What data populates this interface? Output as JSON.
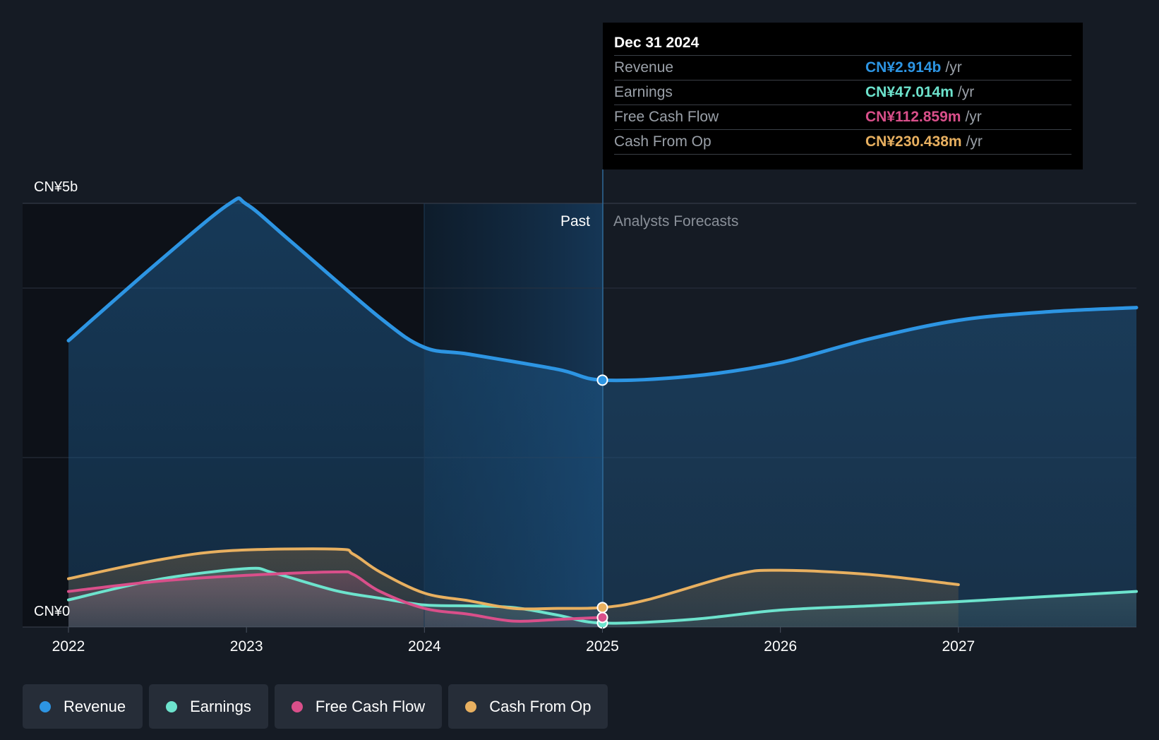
{
  "tooltip": {
    "date": "Dec 31 2024",
    "rows": [
      {
        "label": "Revenue",
        "value": "CN¥2.914b",
        "unit": "/yr",
        "color": "#2d95e3"
      },
      {
        "label": "Earnings",
        "value": "CN¥47.014m",
        "unit": "/yr",
        "color": "#6de3cd"
      },
      {
        "label": "Free Cash Flow",
        "value": "CN¥112.859m",
        "unit": "/yr",
        "color": "#d94f8a"
      },
      {
        "label": "Cash From Op",
        "value": "CN¥230.438m",
        "unit": "/yr",
        "color": "#e8b060"
      }
    ]
  },
  "legend": [
    {
      "label": "Revenue",
      "color": "#2d95e3"
    },
    {
      "label": "Earnings",
      "color": "#6de3cd"
    },
    {
      "label": "Free Cash Flow",
      "color": "#d94f8a"
    },
    {
      "label": "Cash From Op",
      "color": "#e8b060"
    }
  ],
  "chart_data": {
    "type": "line",
    "currency": "CN¥",
    "ylim": [
      0,
      5
    ],
    "y_unit": "billions",
    "xlim": [
      2022,
      2028
    ],
    "y_tick_labels": [
      "CN¥5b",
      "CN¥0"
    ],
    "x_tick_labels": [
      "2022",
      "2023",
      "2024",
      "2025",
      "2026",
      "2027"
    ],
    "x_ticks": [
      2022,
      2023,
      2024,
      2025,
      2026,
      2027
    ],
    "past_label": "Past",
    "forecast_label": "Analysts Forecasts",
    "divider_x": 2025,
    "highlight_start_x": 2024,
    "series": [
      {
        "name": "Revenue",
        "color": "#2d95e3",
        "points": [
          [
            2022,
            3.38
          ],
          [
            2022.5,
            4.3
          ],
          [
            2022.9,
            4.99
          ],
          [
            2023,
            4.99
          ],
          [
            2023.25,
            4.55
          ],
          [
            2023.75,
            3.65
          ],
          [
            2024,
            3.3
          ],
          [
            2024.25,
            3.22
          ],
          [
            2024.75,
            3.04
          ],
          [
            2025,
            2.914
          ],
          [
            2025.5,
            2.96
          ],
          [
            2026,
            3.12
          ],
          [
            2026.5,
            3.4
          ],
          [
            2027,
            3.62
          ],
          [
            2027.5,
            3.72
          ],
          [
            2028,
            3.77
          ]
        ]
      },
      {
        "name": "Earnings",
        "color": "#6de3cd",
        "points": [
          [
            2022,
            0.32
          ],
          [
            2022.5,
            0.56
          ],
          [
            2023,
            0.69
          ],
          [
            2023.15,
            0.64
          ],
          [
            2023.5,
            0.43
          ],
          [
            2023.75,
            0.34
          ],
          [
            2024,
            0.26
          ],
          [
            2024.25,
            0.25
          ],
          [
            2024.5,
            0.23
          ],
          [
            2024.75,
            0.14
          ],
          [
            2025,
            0.047
          ],
          [
            2025.5,
            0.09
          ],
          [
            2026,
            0.2
          ],
          [
            2026.5,
            0.25
          ],
          [
            2027,
            0.3
          ],
          [
            2027.5,
            0.36
          ],
          [
            2028,
            0.42
          ]
        ]
      },
      {
        "name": "Free Cash Flow",
        "color": "#d94f8a",
        "points": [
          [
            2022,
            0.42
          ],
          [
            2022.5,
            0.54
          ],
          [
            2023,
            0.61
          ],
          [
            2023.5,
            0.65
          ],
          [
            2023.6,
            0.62
          ],
          [
            2023.75,
            0.42
          ],
          [
            2024,
            0.22
          ],
          [
            2024.25,
            0.15
          ],
          [
            2024.5,
            0.07
          ],
          [
            2024.75,
            0.09
          ],
          [
            2025,
            0.113
          ]
        ]
      },
      {
        "name": "Cash From Op",
        "color": "#e8b060",
        "points": [
          [
            2022,
            0.57
          ],
          [
            2022.5,
            0.79
          ],
          [
            2022.9,
            0.9
          ],
          [
            2023.5,
            0.92
          ],
          [
            2023.6,
            0.86
          ],
          [
            2023.75,
            0.65
          ],
          [
            2024,
            0.4
          ],
          [
            2024.25,
            0.31
          ],
          [
            2024.5,
            0.22
          ],
          [
            2024.75,
            0.22
          ],
          [
            2025,
            0.23
          ],
          [
            2025.25,
            0.32
          ],
          [
            2025.75,
            0.62
          ],
          [
            2026,
            0.67
          ],
          [
            2026.5,
            0.62
          ],
          [
            2027,
            0.5
          ]
        ]
      }
    ]
  }
}
